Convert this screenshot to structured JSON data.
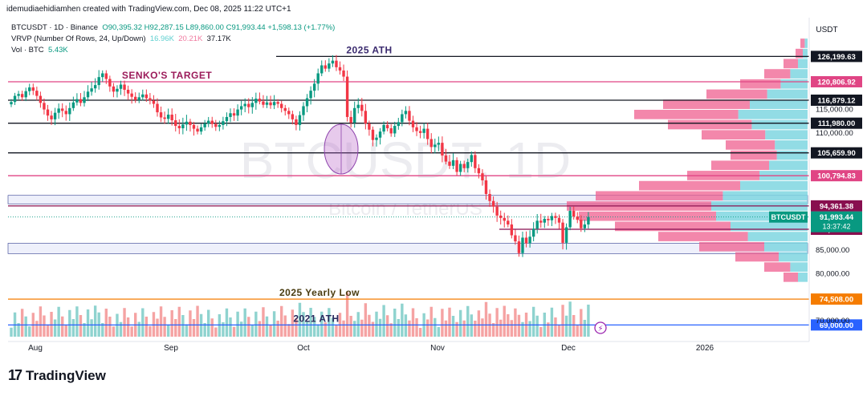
{
  "caption": "idemudiaehidiamhen created with TradingView.com, Dec 08, 2025 11:22 UTC+1",
  "legend": {
    "symbol_line": "BTCUSDT · 1D · Binance",
    "ohlc": {
      "o": "O90,395.32",
      "h": "H92,287.15",
      "l": "L89,860.00",
      "c": "C91,993.44",
      "chg": "+1,598.13 (+1.77%)"
    },
    "vrvp_label": "VRVP (Number Of Rows, 24, Up/Down)",
    "vrvp_up": "16.96K",
    "vrvp_down": "20.21K",
    "vrvp_total": "37.17K",
    "vol_label": "Vol · BTC",
    "vol_value": "5.43K"
  },
  "watermark": {
    "symbol": "BTCUSDT, 1D",
    "name": "Bitcoin / TetherUS"
  },
  "currency_button": "USDT",
  "brand": {
    "logo": "17",
    "name": "TradingView"
  },
  "colors": {
    "up": "#089981",
    "down": "#f23645",
    "vol_up": "#8fd3cf",
    "vol_down": "#f5a3a3",
    "vp_up": "#7fd6e0",
    "vp_down": "#ef5f8f"
  },
  "chart_data": {
    "type": "candlestick",
    "symbol": "BTCUSDT",
    "interval": "1D",
    "exchange": "Binance",
    "x_tick_labels": [
      "Aug",
      "Sep",
      "Oct",
      "Nov",
      "Dec",
      "2026"
    ],
    "y_tick_labels": [
      "115,000.00",
      "110,000.00",
      "85,000.00",
      "80,000.00",
      "70,000.00"
    ],
    "y_range": [
      66500,
      129000
    ],
    "grid": false,
    "last_price": {
      "label": "BTCUSDT",
      "value": "91,993.44",
      "countdown": "13:37:42"
    },
    "horizontal_levels": [
      {
        "value": 126199.63,
        "label": "126,199.63",
        "annotation": "2025 ATH",
        "color": "#131722"
      },
      {
        "value": 120806.92,
        "label": "120,806.92",
        "annotation": "SENKO'S TARGET",
        "color": "#e04584"
      },
      {
        "value": 116879.12,
        "label": "116,879.12",
        "annotation": "",
        "color": "#131722"
      },
      {
        "value": 111980.0,
        "label": "111,980.00",
        "annotation": "",
        "color": "#131722"
      },
      {
        "value": 105659.9,
        "label": "105,659.90",
        "annotation": "",
        "color": "#131722"
      },
      {
        "value": 100794.83,
        "label": "100,794.83",
        "annotation": "",
        "color": "#e04584"
      },
      {
        "value": 94361.38,
        "label": "94,361.38",
        "annotation": "",
        "color": "#880e4f"
      },
      {
        "value": 89380.8,
        "label": "89,380.80",
        "annotation": "",
        "color": "#880e4f"
      },
      {
        "value": 74508.0,
        "label": "74,508.00",
        "annotation": "2025 Yearly Low",
        "color": "#f57c00"
      },
      {
        "value": 69000.0,
        "label": "69,000.00",
        "annotation": "2021 ATH",
        "color": "#2962ff"
      }
    ],
    "zones": [
      {
        "from": 94800,
        "to": 96600
      },
      {
        "from": 84200,
        "to": 86400
      }
    ],
    "candles_close": [
      116500,
      117800,
      118200,
      117500,
      118800,
      119600,
      118900,
      117800,
      116300,
      114900,
      113600,
      112800,
      114200,
      115100,
      114600,
      113900,
      115200,
      116400,
      117100,
      116300,
      117500,
      118700,
      119400,
      120100,
      121800,
      122600,
      121400,
      119800,
      118700,
      119300,
      120200,
      119100,
      118300,
      117600,
      116900,
      117500,
      118100,
      117300,
      116800,
      116100,
      114300,
      113200,
      112900,
      113800,
      112600,
      111400,
      110900,
      111700,
      112300,
      111600,
      110800,
      110200,
      111100,
      111900,
      112500,
      111800,
      111200,
      111600,
      112400,
      113300,
      114100,
      113600,
      114900,
      115600,
      116100,
      115400,
      116300,
      117200,
      116600,
      115900,
      116400,
      115800,
      116500,
      116100,
      115200,
      114600,
      113900,
      112800,
      111600,
      113700,
      115600,
      117300,
      118900,
      120400,
      122600,
      124300,
      123600,
      124700,
      125300,
      123900,
      123200,
      121900,
      113300,
      112100,
      115200,
      115900,
      114600,
      111900,
      110600,
      108400,
      108900,
      110200,
      111600,
      110900,
      109800,
      111400,
      112200,
      113900,
      114600,
      112500,
      111100,
      110300,
      109900,
      110800,
      108600,
      106900,
      107400,
      107800,
      105100,
      103800,
      102900,
      104100,
      101600,
      103300,
      102400,
      103700,
      105200,
      102400,
      101300,
      99800,
      96900,
      95400,
      94200,
      92300,
      91800,
      91200,
      90400,
      88100,
      86800,
      84300,
      87600,
      86400,
      87800,
      89500,
      91200,
      90800,
      91600,
      91300,
      92200,
      91800,
      90800,
      86500,
      89800,
      93300,
      92100,
      91400,
      89600,
      90400,
      91993.44
    ],
    "volume_max_ratio": 1.0
  }
}
